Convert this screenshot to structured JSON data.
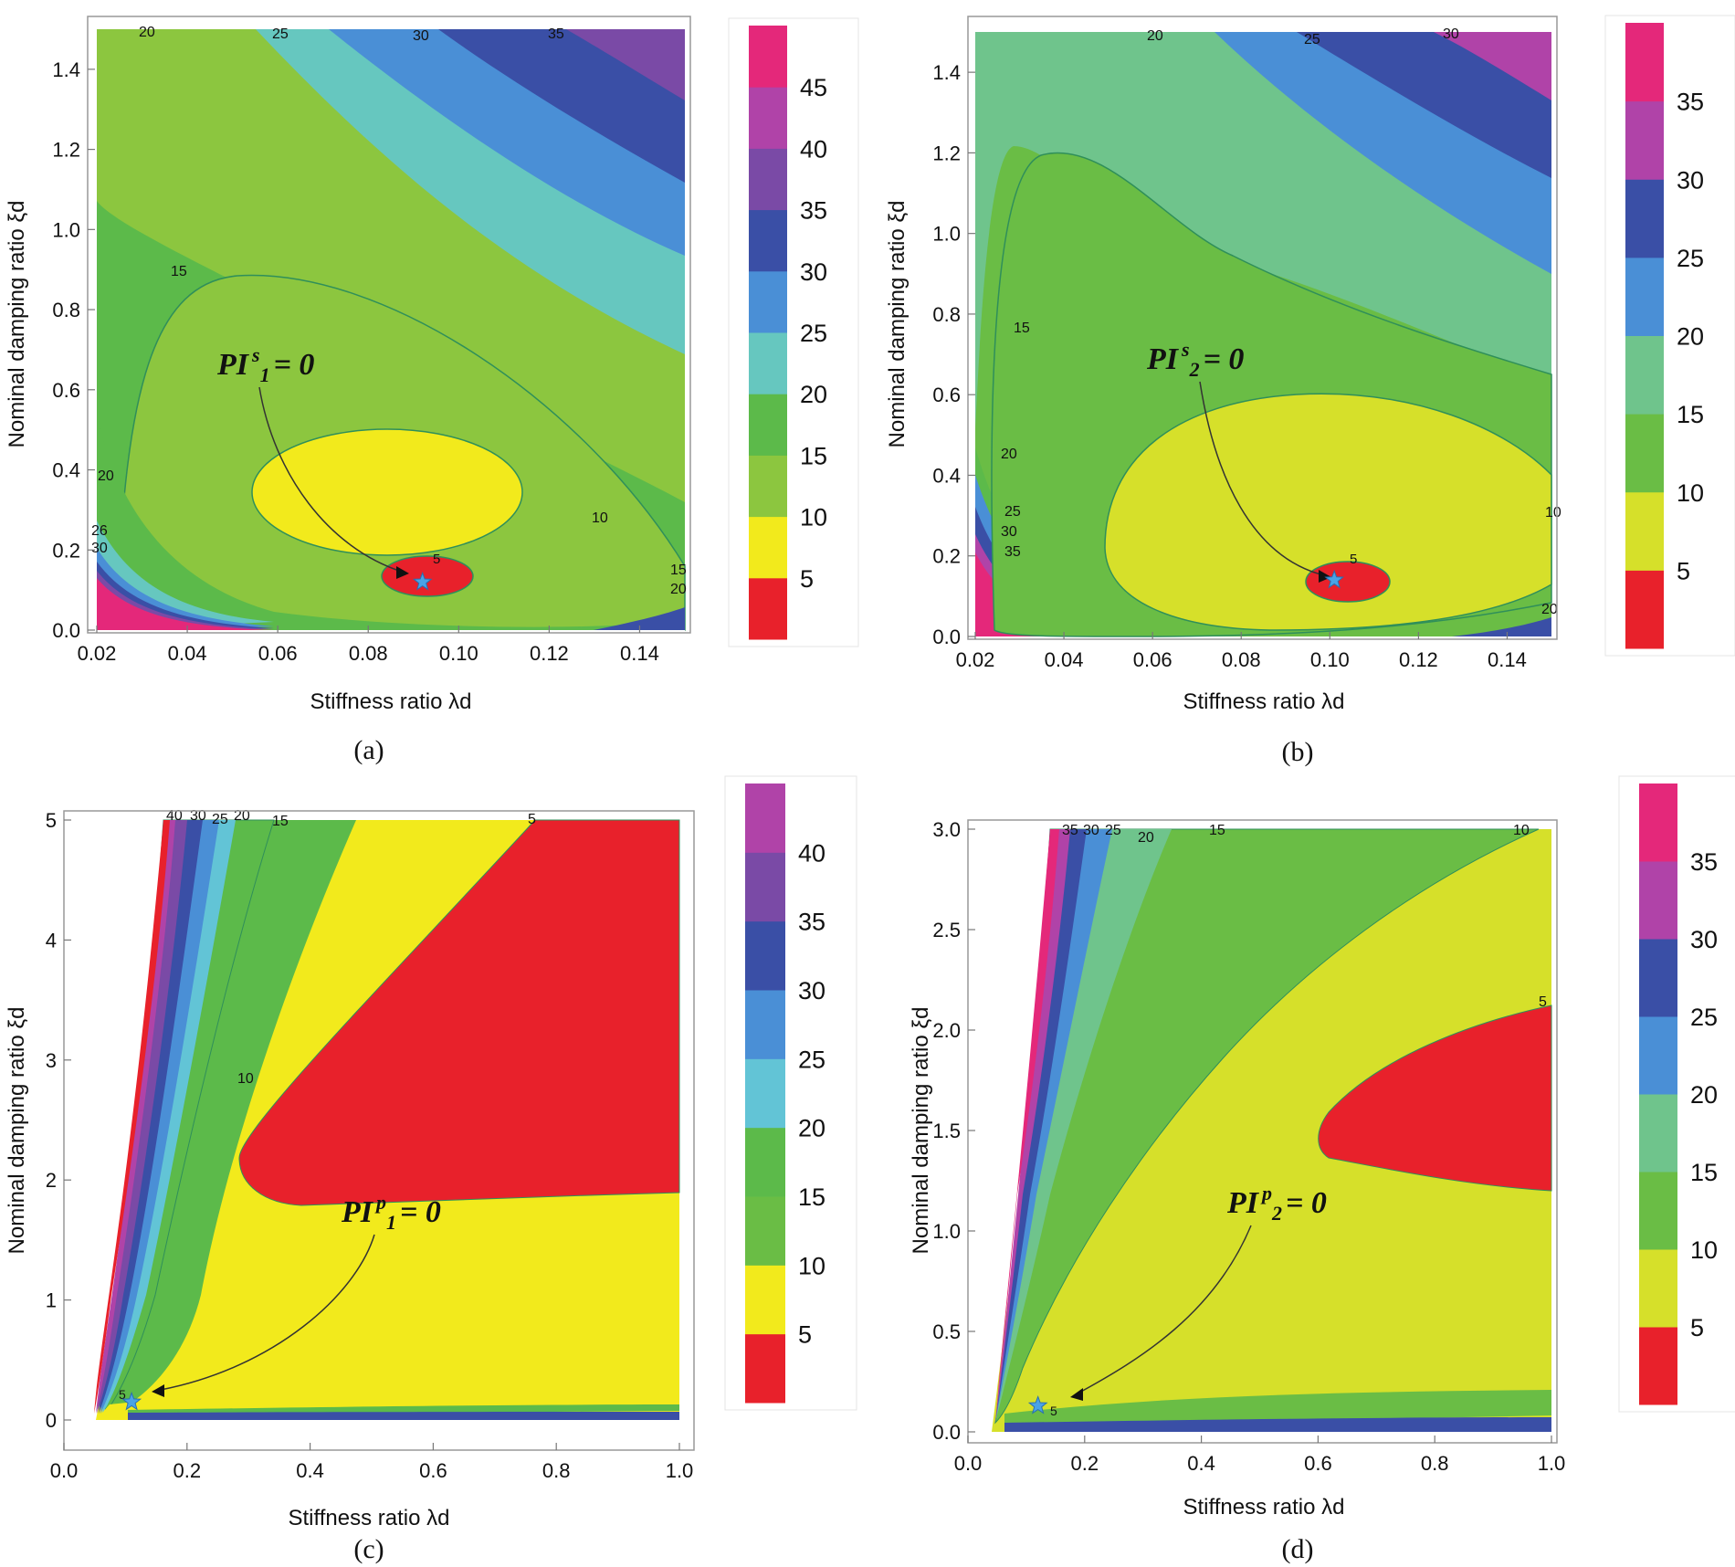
{
  "colors": {
    "c0_5": "#e8212b",
    "c5_10": "#f2ea1c",
    "c5_10_alt": "#d6e02a",
    "c10_15": "#8cc63f",
    "c10_15_alt": "#6abd45",
    "c15_20": "#5cba4a",
    "c15_20_alt": "#6fc48c",
    "c20_25": "#66c7bf",
    "c20_25_alt": "#62c4d6",
    "c25_30": "#4a8fd6",
    "c30_35": "#3a4fa6",
    "c35_40": "#7a4aa6",
    "c40_45": "#b043a8",
    "c45_50": "#e4287a",
    "star": "#4aa3e6",
    "axes_bg": "#ffffff"
  },
  "chart_data": [
    {
      "panel": "a",
      "type": "contour",
      "caption": "(a)",
      "xlabel": "Stiffness ratio λd",
      "ylabel": "Nominal damping ratio ξd",
      "xlim": [
        0.02,
        0.15
      ],
      "ylim": [
        0.0,
        1.5
      ],
      "xticks": [
        "0.02",
        "0.04",
        "0.06",
        "0.08",
        "0.10",
        "0.12",
        "0.14"
      ],
      "yticks": [
        "0.0",
        "0.2",
        "0.4",
        "0.6",
        "0.8",
        "1.0",
        "1.2",
        "1.4"
      ],
      "colorbar_levels": [
        5,
        10,
        15,
        20,
        25,
        30,
        35,
        40,
        45
      ],
      "colorbar_labels": [
        "5",
        "10",
        "15",
        "20",
        "25",
        "30",
        "35",
        "40",
        "45"
      ],
      "optimum": {
        "label": "PI s1 = 0",
        "pi_base": "PI",
        "pi_sup": "s",
        "pi_sub": "1",
        "pi_eq": "= 0",
        "x": 0.092,
        "y": 0.12
      },
      "contour_labels": [
        "20",
        "25",
        "30",
        "35",
        "15",
        "20",
        "26",
        "30",
        "10",
        "5",
        "15",
        "20"
      ]
    },
    {
      "panel": "b",
      "type": "contour",
      "caption": "(b)",
      "xlabel": "Stiffness ratio λd",
      "ylabel": "Nominal damping ratio ξd",
      "xlim": [
        0.02,
        0.15
      ],
      "ylim": [
        0.0,
        1.5
      ],
      "xticks": [
        "0.02",
        "0.04",
        "0.06",
        "0.08",
        "0.10",
        "0.12",
        "0.14"
      ],
      "yticks": [
        "0.0",
        "0.2",
        "0.4",
        "0.6",
        "0.8",
        "1.0",
        "1.2",
        "1.4"
      ],
      "colorbar_levels": [
        5,
        10,
        15,
        20,
        25,
        30,
        35
      ],
      "colorbar_labels": [
        "5",
        "10",
        "15",
        "20",
        "25",
        "30",
        "35"
      ],
      "optimum": {
        "label": "PI s2 = 0",
        "pi_base": "PI",
        "pi_sup": "s",
        "pi_sub": "2",
        "pi_eq": "= 0",
        "x": 0.101,
        "y": 0.14
      },
      "contour_labels": [
        "20",
        "25",
        "30",
        "15",
        "20",
        "25",
        "30",
        "35",
        "10",
        "5",
        "20"
      ]
    },
    {
      "panel": "c",
      "type": "contour",
      "caption": "(c)",
      "xlabel": "Stiffness ratio λd",
      "ylabel": "Nominal damping ratio ξd",
      "xlim": [
        0.0,
        1.0
      ],
      "ylim": [
        0.0,
        5.0
      ],
      "xticks": [
        "0.0",
        "0.2",
        "0.4",
        "0.6",
        "0.8",
        "1.0"
      ],
      "yticks": [
        "0",
        "1",
        "2",
        "3",
        "4",
        "5"
      ],
      "colorbar_levels": [
        5,
        10,
        15,
        20,
        25,
        30,
        35,
        40
      ],
      "colorbar_labels": [
        "5",
        "10",
        "15",
        "20",
        "25",
        "30",
        "35",
        "40"
      ],
      "optimum": {
        "label": "PI p1 = 0",
        "pi_base": "PI",
        "pi_sup": "p",
        "pi_sub": "1",
        "pi_eq": "= 0",
        "x": 0.11,
        "y": 0.15
      },
      "contour_labels": [
        "40",
        "30",
        "25",
        "20",
        "15",
        "5",
        "10",
        "5"
      ]
    },
    {
      "panel": "d",
      "type": "contour",
      "caption": "(d)",
      "xlabel": "Stiffness ratio λd",
      "ylabel": "Nominal damping ratio ξd",
      "xlim": [
        0.0,
        1.0
      ],
      "ylim": [
        0.0,
        3.0
      ],
      "xticks": [
        "0.0",
        "0.2",
        "0.4",
        "0.6",
        "0.8",
        "1.0"
      ],
      "yticks": [
        "0.0",
        "0.5",
        "1.0",
        "1.5",
        "2.0",
        "2.5",
        "3.0"
      ],
      "colorbar_levels": [
        5,
        10,
        15,
        20,
        25,
        30,
        35
      ],
      "colorbar_labels": [
        "5",
        "10",
        "15",
        "20",
        "25",
        "30",
        "35"
      ],
      "optimum": {
        "label": "PI p2 = 0",
        "pi_base": "PI",
        "pi_sup": "p",
        "pi_sub": "2",
        "pi_eq": "= 0",
        "x": 0.12,
        "y": 0.13
      },
      "contour_labels": [
        "35",
        "30",
        "25",
        "20",
        "15",
        "10",
        "5",
        "5"
      ]
    }
  ]
}
